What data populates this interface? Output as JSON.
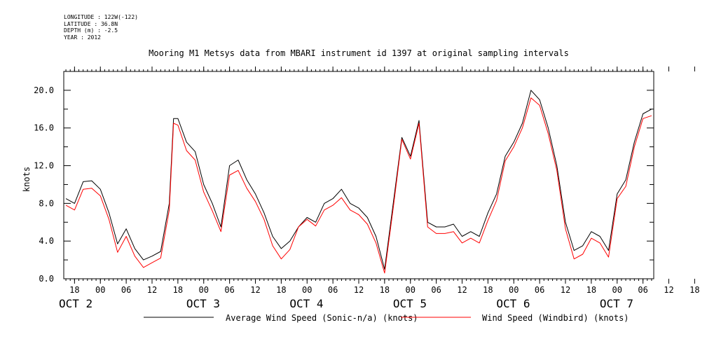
{
  "meta": {
    "longitude": "LONGITUDE : 122W(-122)",
    "latitude": "LATITUDE : 36.8N",
    "depth": "DEPTH (m) : -2.5",
    "year": "YEAR : 2012"
  },
  "chart_data": {
    "type": "line",
    "title": "Mooring M1 Metsys data from MBARI instrument id 1397 at original sampling intervals",
    "ylabel": "knots",
    "xlabel": "",
    "ylim": [
      0,
      22.0
    ],
    "xlim_hours": [
      -8.5,
      128.5
    ],
    "y_ticks": [
      "0.0",
      "4.0",
      "8.0",
      "12.0",
      "16.0",
      "20.0"
    ],
    "y_tick_values": [
      0,
      4,
      8,
      12,
      16,
      20
    ],
    "hour_ticks": [
      "18",
      "00",
      "06",
      "12",
      "18",
      "00",
      "06",
      "12",
      "18",
      "00",
      "06",
      "12",
      "18",
      "00",
      "06",
      "12",
      "18",
      "00",
      "06",
      "12",
      "18",
      "00",
      "06",
      "12",
      "18",
      "00"
    ],
    "day_labels": [
      "OCT  2",
      "OCT  3",
      "OCT  4",
      "OCT  5",
      "OCT  6",
      "OCT  7"
    ],
    "grid": false,
    "legend": {
      "placement": "bottom"
    },
    "series": [
      {
        "name": "Average Wind Speed (Sonic-n/a) (knots)",
        "color": "#000000",
        "x": [
          -8,
          -6,
          -4,
          -2,
          0,
          2,
          4,
          6,
          8,
          10,
          12,
          14,
          16,
          17,
          18,
          20,
          22,
          24,
          26,
          28,
          30,
          32,
          34,
          36,
          38,
          40,
          42,
          44,
          46,
          48,
          50,
          52,
          54,
          56,
          58,
          60,
          62,
          64,
          66,
          68,
          70,
          72,
          74,
          76,
          78,
          80,
          82,
          84,
          86,
          88,
          90,
          92,
          94,
          96,
          98,
          100,
          102,
          104,
          106,
          108,
          110,
          112,
          114,
          116,
          118,
          120,
          122,
          124,
          126,
          128
        ],
        "y": [
          8.5,
          8.0,
          10.3,
          10.4,
          9.5,
          7.0,
          3.7,
          5.3,
          3.2,
          2.0,
          2.4,
          2.9,
          8.0,
          17.0,
          17.0,
          14.5,
          13.5,
          10.0,
          8.0,
          5.5,
          12.0,
          12.6,
          10.5,
          9.0,
          7.0,
          4.5,
          3.2,
          4.0,
          5.5,
          6.5,
          6.0,
          8.0,
          8.5,
          9.5,
          8.0,
          7.5,
          6.5,
          4.5,
          1.0,
          8.0,
          15.0,
          13.0,
          16.8,
          6.0,
          5.5,
          5.5,
          5.8,
          4.5,
          5.0,
          4.5,
          7.0,
          9.0,
          13.0,
          14.5,
          16.5,
          20.0,
          19.0,
          16.0,
          12.0,
          6.0,
          3.0,
          3.5,
          5.0,
          4.5,
          3.0,
          9.0,
          10.5,
          14.5,
          17.5,
          18.0
        ]
      },
      {
        "name": "Wind Speed (Windbird) (knots)",
        "color": "#ff0000",
        "x": [
          -8,
          -6,
          -4,
          -2,
          0,
          2,
          4,
          6,
          8,
          10,
          12,
          14,
          16,
          17,
          18,
          20,
          22,
          24,
          26,
          28,
          30,
          32,
          34,
          36,
          38,
          40,
          42,
          44,
          46,
          48,
          50,
          52,
          54,
          56,
          58,
          60,
          62,
          64,
          66,
          68,
          70,
          72,
          74,
          76,
          78,
          80,
          82,
          84,
          86,
          88,
          90,
          92,
          94,
          96,
          98,
          100,
          102,
          104,
          106,
          108,
          110,
          112,
          114,
          116,
          118,
          120,
          122,
          124,
          126,
          128
        ],
        "y": [
          7.8,
          7.3,
          9.5,
          9.6,
          8.8,
          6.3,
          2.8,
          4.5,
          2.4,
          1.2,
          1.7,
          2.2,
          7.3,
          16.5,
          16.3,
          13.6,
          12.6,
          9.2,
          7.2,
          5.0,
          11.0,
          11.5,
          9.6,
          8.2,
          6.3,
          3.5,
          2.1,
          3.1,
          5.5,
          6.3,
          5.6,
          7.3,
          7.8,
          8.6,
          7.3,
          6.8,
          5.8,
          3.8,
          0.6,
          7.5,
          14.8,
          12.7,
          16.5,
          5.5,
          4.8,
          4.8,
          5.0,
          3.8,
          4.3,
          3.8,
          6.2,
          8.3,
          12.5,
          14.0,
          16.0,
          19.2,
          18.4,
          15.4,
          11.5,
          5.3,
          2.1,
          2.6,
          4.3,
          3.8,
          2.3,
          8.5,
          9.8,
          14.0,
          17.0,
          17.3
        ]
      }
    ]
  }
}
